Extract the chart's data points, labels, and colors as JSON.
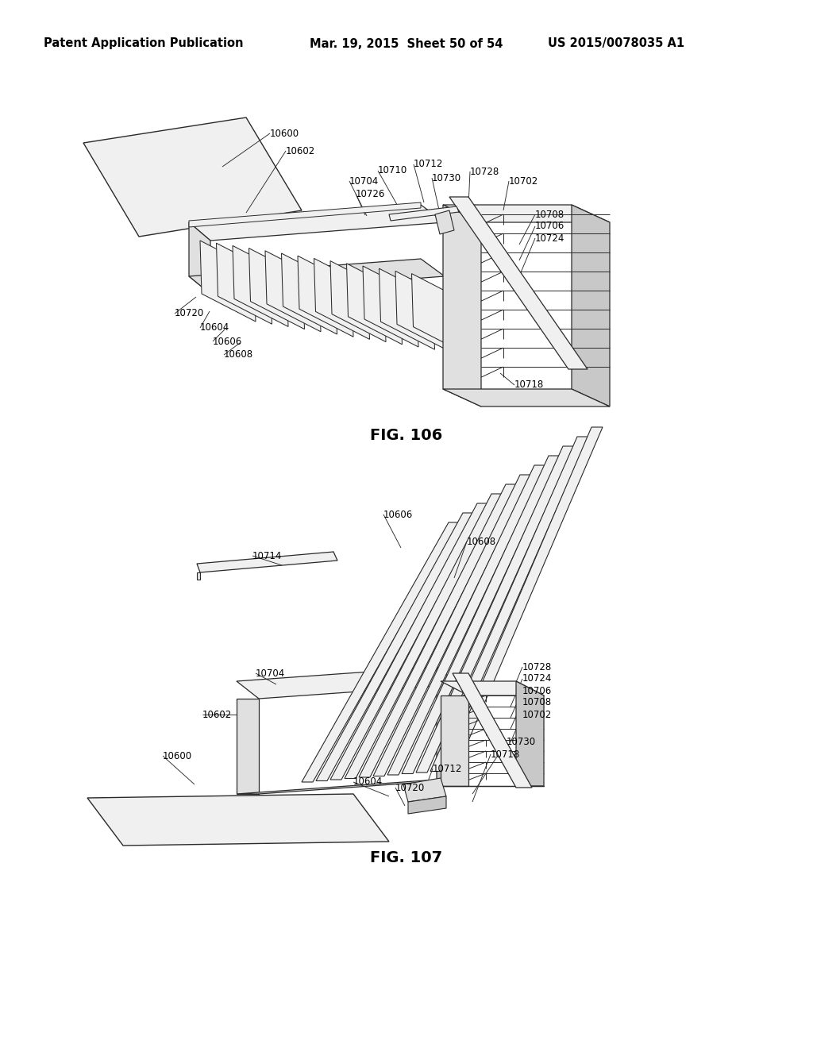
{
  "background_color": "#ffffff",
  "header_left": "Patent Application Publication",
  "header_center": "Mar. 19, 2015  Sheet 50 of 54",
  "header_right": "US 2015/0078035 A1",
  "fig106_label": "FIG. 106",
  "fig107_label": "FIG. 107",
  "line_color": "#2a2a2a",
  "fill_white": "#ffffff",
  "fill_light": "#f0f0f0",
  "fill_med": "#e0e0e0",
  "fill_dark": "#c8c8c8"
}
